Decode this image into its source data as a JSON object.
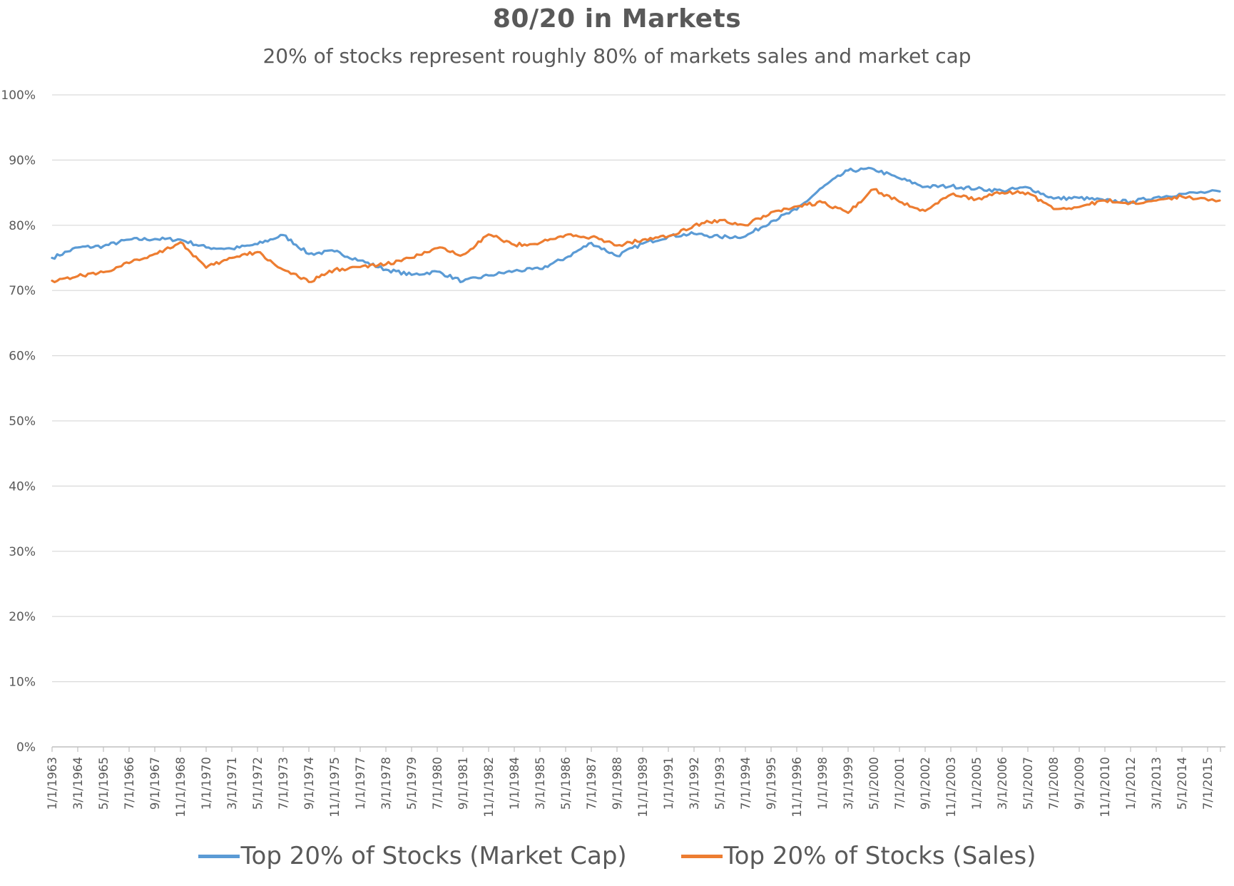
{
  "chart_data": {
    "type": "line",
    "title": "80/20 in Markets",
    "subtitle": "20% of stocks represent roughly 80% of markets sales and market cap",
    "xlabel": "",
    "ylabel": "",
    "ylim": [
      0,
      100
    ],
    "y_ticks": [
      "0%",
      "10%",
      "20%",
      "30%",
      "40%",
      "50%",
      "60%",
      "70%",
      "80%",
      "90%",
      "100%"
    ],
    "x_tick_labels": [
      "1/1/1963",
      "3/1/1964",
      "5/1/1965",
      "7/1/1966",
      "9/1/1967",
      "11/1/1968",
      "1/1/1970",
      "3/1/1971",
      "5/1/1972",
      "7/1/1973",
      "9/1/1974",
      "11/1/1975",
      "1/1/1977",
      "3/1/1978",
      "5/1/1979",
      "7/1/1980",
      "9/1/1981",
      "11/1/1982",
      "1/1/1984",
      "3/1/1985",
      "5/1/1986",
      "7/1/1987",
      "9/1/1988",
      "11/1/1989",
      "1/1/1991",
      "3/1/1992",
      "5/1/1993",
      "7/1/1994",
      "9/1/1995",
      "11/1/1996",
      "1/1/1998",
      "3/1/1999",
      "5/1/2000",
      "7/1/2001",
      "9/1/2002",
      "11/1/2003",
      "1/1/2005",
      "3/1/2006",
      "5/1/2007",
      "7/1/2008",
      "9/1/2009",
      "11/1/2010",
      "1/1/2012",
      "3/1/2013",
      "5/1/2014",
      "7/1/2015"
    ],
    "grid": true,
    "legend_position": "bottom",
    "series": [
      {
        "name": "Top 20% of Stocks (Market Cap)",
        "color": "#5B9BD5",
        "x": [
          "1/1/1963",
          "3/1/1964",
          "5/1/1965",
          "7/1/1966",
          "9/1/1967",
          "11/1/1968",
          "1/1/1970",
          "3/1/1971",
          "5/1/1972",
          "7/1/1973",
          "9/1/1974",
          "11/1/1975",
          "1/1/1977",
          "3/1/1978",
          "5/1/1979",
          "7/1/1980",
          "9/1/1981",
          "11/1/1982",
          "1/1/1984",
          "3/1/1985",
          "5/1/1986",
          "7/1/1987",
          "9/1/1988",
          "11/1/1989",
          "1/1/1991",
          "3/1/1992",
          "5/1/1993",
          "7/1/1994",
          "9/1/1995",
          "11/1/1996",
          "1/1/1998",
          "3/1/1999",
          "5/1/2000",
          "7/1/2001",
          "9/1/2002",
          "11/1/2003",
          "1/1/2005",
          "3/1/2006",
          "5/1/2007",
          "7/1/2008",
          "9/1/2009",
          "11/1/2010",
          "1/1/2012",
          "3/1/2013",
          "5/1/2014",
          "7/1/2015"
        ],
        "values": [
          75.0,
          76.6,
          76.8,
          77.8,
          77.9,
          77.8,
          76.6,
          76.4,
          77.1,
          78.5,
          75.6,
          76.0,
          74.6,
          73.2,
          72.4,
          72.9,
          71.4,
          72.3,
          73.0,
          73.3,
          75.0,
          77.3,
          75.3,
          77.2,
          78.3,
          78.7,
          78.2,
          78.3,
          80.6,
          82.4,
          85.8,
          88.4,
          88.6,
          87.2,
          85.9,
          86.0,
          85.6,
          85.3,
          85.8,
          84.1,
          84.2,
          83.8,
          83.6,
          84.3,
          84.8,
          85.2
        ]
      },
      {
        "name": "Top 20% of Stocks (Sales)",
        "color": "#ED7D31",
        "x": [
          "1/1/1963",
          "3/1/1964",
          "5/1/1965",
          "7/1/1966",
          "9/1/1967",
          "11/1/1968",
          "1/1/1970",
          "3/1/1971",
          "5/1/1972",
          "7/1/1973",
          "9/1/1974",
          "11/1/1975",
          "1/1/1977",
          "3/1/1978",
          "5/1/1979",
          "7/1/1980",
          "9/1/1981",
          "11/1/1982",
          "1/1/1984",
          "3/1/1985",
          "5/1/1986",
          "7/1/1987",
          "9/1/1988",
          "11/1/1989",
          "1/1/1991",
          "3/1/1992",
          "5/1/1993",
          "7/1/1994",
          "9/1/1995",
          "11/1/1996",
          "1/1/1998",
          "3/1/1999",
          "5/1/2000",
          "7/1/2001",
          "9/1/2002",
          "11/1/2003",
          "1/1/2005",
          "3/1/2006",
          "5/1/2007",
          "7/1/2008",
          "9/1/2009",
          "11/1/2010",
          "1/1/2012",
          "3/1/2013",
          "5/1/2014",
          "7/1/2015"
        ],
        "values": [
          71.5,
          72.2,
          72.8,
          74.2,
          75.6,
          77.4,
          73.5,
          75.0,
          75.9,
          73.2,
          71.3,
          73.2,
          73.6,
          74.0,
          75.0,
          76.5,
          75.5,
          78.6,
          77.0,
          77.3,
          78.5,
          78.2,
          76.9,
          77.8,
          78.3,
          80.0,
          80.8,
          80.0,
          82.0,
          82.9,
          83.5,
          81.9,
          85.5,
          83.6,
          82.2,
          84.7,
          84.0,
          85.0,
          85.0,
          82.5,
          82.8,
          83.8,
          83.4,
          83.8,
          84.4,
          83.8
        ]
      }
    ]
  }
}
